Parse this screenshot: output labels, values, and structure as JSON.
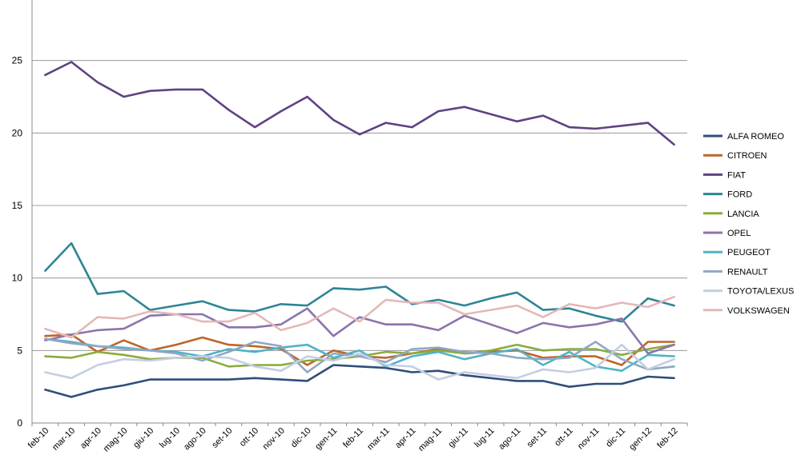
{
  "chart_data": {
    "type": "line",
    "title": "",
    "xlabel": "",
    "ylabel": "",
    "ylim": [
      0,
      30
    ],
    "yticks": [
      0,
      5,
      10,
      15,
      20,
      25
    ],
    "grid": "horizontal",
    "legend_position": "right",
    "categories": [
      "feb-10",
      "mar-10",
      "apr-10",
      "mag-10",
      "giu-10",
      "lug-10",
      "ago-10",
      "set-10",
      "ott-10",
      "nov-10",
      "dic-10",
      "gen-11",
      "feb-11",
      "mar-11",
      "apr-11",
      "mag-11",
      "giu-11",
      "lug-11",
      "ago-11",
      "set-11",
      "ott-11",
      "nov-11",
      "dic-11",
      "gen-12",
      "feb-12"
    ],
    "series": [
      {
        "name": "ALFA ROMEO",
        "color": "#2f4e7a",
        "values": [
          2.3,
          1.8,
          2.3,
          2.6,
          3.0,
          3.0,
          3.0,
          3.0,
          3.1,
          3.0,
          2.9,
          4.0,
          3.9,
          3.8,
          3.5,
          3.6,
          3.3,
          3.1,
          2.9,
          2.9,
          2.5,
          2.7,
          2.7,
          3.2,
          3.1
        ]
      },
      {
        "name": "CITROEN",
        "color": "#c0642a",
        "values": [
          6.0,
          6.1,
          4.9,
          5.7,
          5.0,
          5.4,
          5.9,
          5.4,
          5.3,
          5.1,
          4.0,
          5.0,
          4.6,
          4.5,
          4.8,
          5.1,
          4.8,
          4.9,
          5.0,
          4.5,
          4.6,
          4.6,
          4.0,
          5.6,
          5.6
        ]
      },
      {
        "name": "FIAT",
        "color": "#5e4283",
        "values": [
          24.0,
          24.9,
          23.5,
          22.5,
          22.9,
          23.0,
          23.0,
          21.6,
          20.4,
          21.5,
          22.5,
          20.9,
          19.9,
          20.7,
          20.4,
          21.5,
          21.8,
          21.3,
          20.8,
          21.2,
          20.4,
          20.3,
          20.5,
          20.7,
          19.2
        ]
      },
      {
        "name": "FORD",
        "color": "#2e8595",
        "values": [
          10.5,
          12.4,
          8.9,
          9.1,
          7.8,
          8.1,
          8.4,
          7.8,
          7.7,
          8.2,
          8.1,
          9.3,
          9.2,
          9.4,
          8.2,
          8.5,
          8.1,
          8.6,
          9.0,
          7.8,
          7.9,
          7.4,
          7.0,
          8.6,
          8.1
        ]
      },
      {
        "name": "LANCIA",
        "color": "#8aac3e",
        "values": [
          4.6,
          4.5,
          4.9,
          4.7,
          4.4,
          4.5,
          4.5,
          3.9,
          4.0,
          4.0,
          4.3,
          4.4,
          4.6,
          4.9,
          4.8,
          5.0,
          4.8,
          5.0,
          5.4,
          5.0,
          5.1,
          5.1,
          4.7,
          5.1,
          5.4
        ]
      },
      {
        "name": "OPEL",
        "color": "#8b74ab",
        "values": [
          5.7,
          6.1,
          6.4,
          6.5,
          7.4,
          7.5,
          7.5,
          6.6,
          6.6,
          6.8,
          7.9,
          6.0,
          7.3,
          6.8,
          6.8,
          6.4,
          7.4,
          6.8,
          6.2,
          6.9,
          6.6,
          6.8,
          7.2,
          4.8,
          5.4
        ]
      },
      {
        "name": "PEUGEOT",
        "color": "#4fb3c7",
        "values": [
          5.8,
          5.6,
          5.3,
          5.2,
          5.0,
          4.9,
          4.6,
          5.1,
          4.9,
          5.2,
          5.4,
          4.5,
          5.0,
          3.9,
          4.6,
          4.9,
          4.4,
          4.8,
          5.1,
          4.0,
          4.9,
          3.9,
          3.6,
          4.7,
          4.6
        ]
      },
      {
        "name": "RENAULT",
        "color": "#8fa8c2",
        "values": [
          5.8,
          5.5,
          5.3,
          5.1,
          5.0,
          4.8,
          4.3,
          4.9,
          5.6,
          5.3,
          3.5,
          4.8,
          4.6,
          4.2,
          5.1,
          5.2,
          4.9,
          4.8,
          4.5,
          4.4,
          4.5,
          5.6,
          4.4,
          3.7,
          3.9
        ]
      },
      {
        "name": "TOYOTA/LEXUS",
        "color": "#c5cde5",
        "values": [
          3.5,
          3.1,
          4.0,
          4.4,
          4.3,
          4.5,
          4.6,
          4.5,
          3.9,
          3.6,
          4.6,
          4.3,
          4.8,
          4.0,
          3.9,
          3.0,
          3.5,
          3.3,
          3.1,
          3.7,
          3.5,
          3.8,
          5.4,
          3.7,
          4.4
        ]
      },
      {
        "name": "VOLKSWAGEN",
        "color": "#e4b8b8",
        "values": [
          6.5,
          5.9,
          7.3,
          7.2,
          7.7,
          7.5,
          7.0,
          7.0,
          7.6,
          6.4,
          6.9,
          7.9,
          7.0,
          8.5,
          8.3,
          8.3,
          7.5,
          7.8,
          8.1,
          7.3,
          8.2,
          7.9,
          8.3,
          8.0,
          8.7
        ]
      }
    ]
  }
}
